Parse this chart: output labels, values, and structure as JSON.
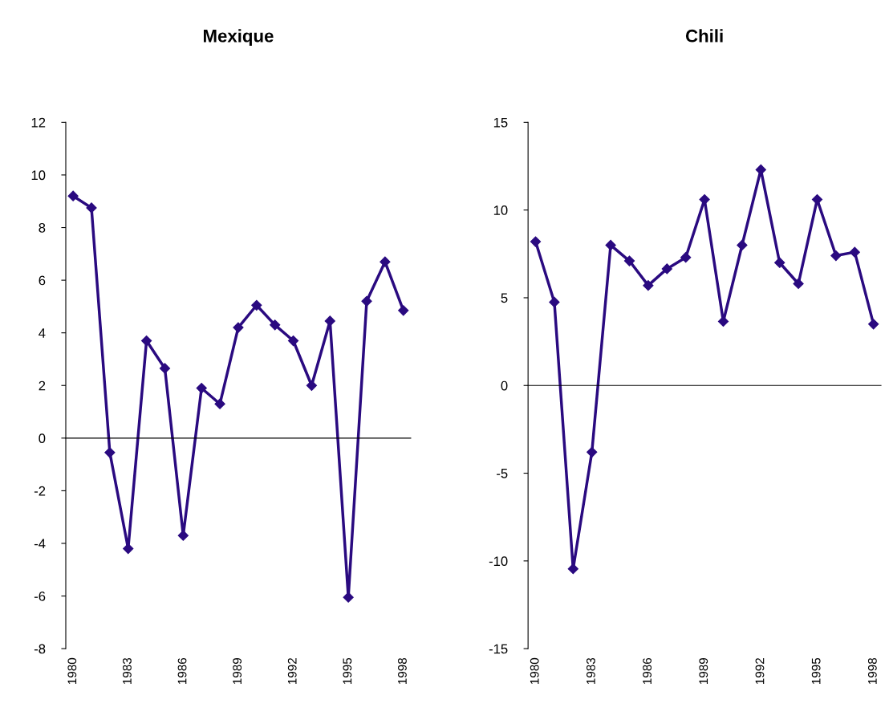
{
  "chart_data": [
    {
      "type": "line",
      "title": "Mexique",
      "categories": [
        "1980",
        null,
        null,
        "1983",
        null,
        null,
        "1986",
        null,
        null,
        "1989",
        null,
        null,
        "1992",
        null,
        null,
        "1995",
        null,
        null,
        "1998"
      ],
      "series": [
        {
          "color": "#2a0a80",
          "values": [
            9.2,
            8.75,
            -0.55,
            -4.2,
            3.7,
            2.65,
            -3.7,
            1.9,
            1.3,
            4.2,
            5.05,
            4.3,
            3.7,
            2.0,
            4.45,
            -6.05,
            5.2,
            6.7,
            4.85
          ]
        }
      ],
      "ylim": [
        -8,
        12
      ],
      "yticks": [
        -8,
        -6,
        -4,
        -2,
        0,
        2,
        4,
        6,
        8,
        10,
        12
      ],
      "legend": false,
      "marker": "diamond",
      "line_style": "solid"
    },
    {
      "type": "line",
      "title": "Chili",
      "categories": [
        "1980",
        null,
        null,
        "1983",
        null,
        null,
        "1986",
        null,
        null,
        "1989",
        null,
        null,
        "1992",
        null,
        null,
        "1995",
        null,
        null,
        "1998"
      ],
      "series": [
        {
          "color": "#2a0a80",
          "values": [
            8.2,
            4.75,
            -10.45,
            -3.8,
            8.0,
            7.1,
            5.7,
            6.65,
            7.3,
            10.6,
            3.65,
            8.0,
            12.3,
            7.0,
            5.8,
            10.6,
            7.4,
            7.6,
            3.5
          ]
        }
      ],
      "ylim": [
        -15,
        15
      ],
      "yticks": [
        -15,
        -10,
        -5,
        0,
        5,
        10,
        15
      ],
      "legend": false,
      "marker": "diamond",
      "line_style": "solid"
    }
  ]
}
